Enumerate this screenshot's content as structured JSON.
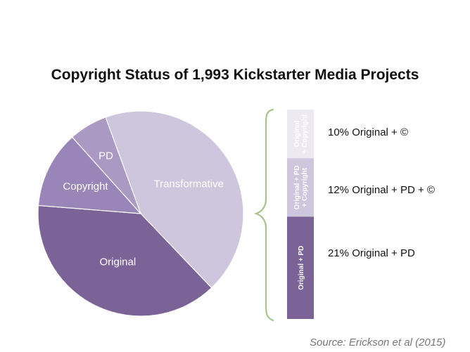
{
  "title": "Copyright Status of 1,993 Kickstarter Media Projects",
  "source": "Source: Erickson et al (2015)",
  "chart_data": [
    {
      "type": "pie",
      "title": "Copyright Status of 1,993 Kickstarter Media Projects",
      "slices": [
        {
          "label": "Transformative",
          "value": 43,
          "color": "#cdc6dc"
        },
        {
          "label": "Original",
          "value": 38,
          "color": "#7b6397"
        },
        {
          "label": "Copyright",
          "value": 12,
          "color": "#9a85b8"
        },
        {
          "label": "PD",
          "value": 6,
          "color": "#a999c3"
        }
      ]
    },
    {
      "type": "bar",
      "stacked": true,
      "categories": [
        "Original + Copyright",
        "Original + PD + Copyright",
        "Original + PD"
      ],
      "values": [
        10,
        12,
        21
      ],
      "value_labels": [
        "10%  Original + ©",
        "12% Original + PD + ©",
        "21% Original + PD"
      ],
      "colors": [
        "#ede9f3",
        "#cdc6dc",
        "#7b6397"
      ]
    }
  ]
}
